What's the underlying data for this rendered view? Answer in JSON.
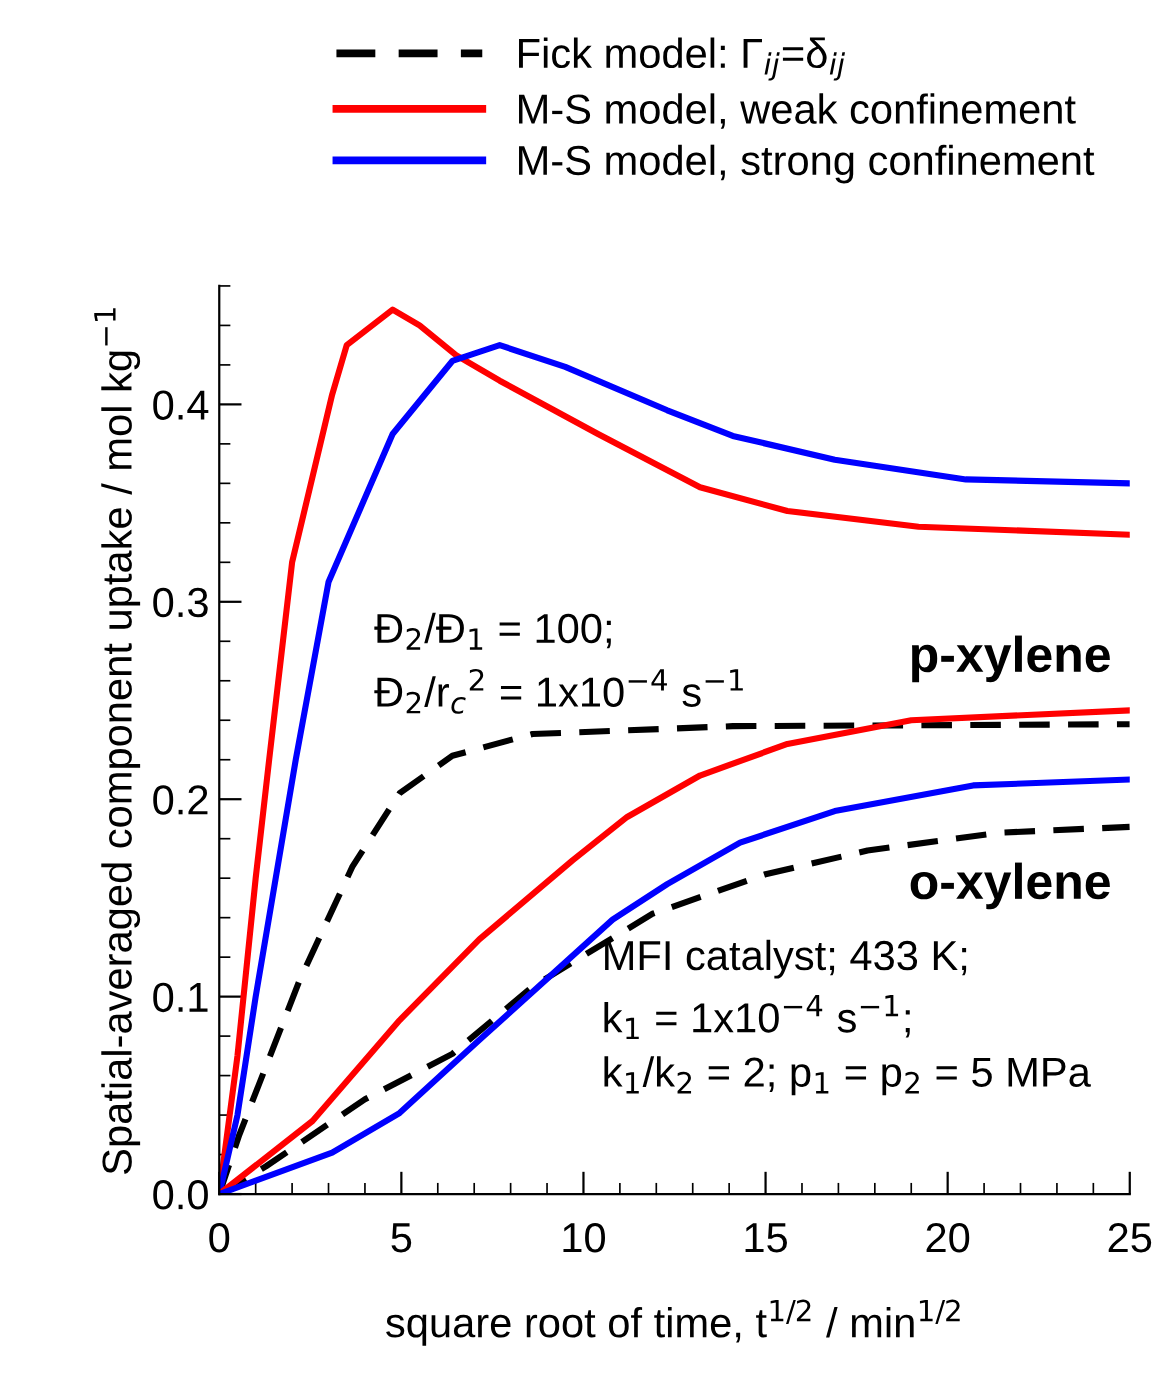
{
  "chart_data": {
    "type": "line",
    "xlabel": "square root of time, t$^{1/2}$ / min$^{1/2}$",
    "ylabel": "Spatial-averaged component uptake / mol kg$^{−1}$",
    "xlim": [
      0,
      25
    ],
    "xticks": [
      0,
      5,
      10,
      15,
      20,
      25
    ],
    "ylim": [
      0,
      0.46
    ],
    "yticks": [
      {
        "value": 0,
        "label": "0.0"
      },
      {
        "value": 0.1,
        "label": "0.1"
      },
      {
        "value": 0.2,
        "label": "0.2"
      },
      {
        "value": 0.3,
        "label": "0.3"
      },
      {
        "value": 0.4,
        "label": "0.4"
      }
    ],
    "grid": false,
    "legend": "top",
    "marker": "none",
    "series": [
      {
        "name": "Fick model: Γ$_{ij}$=δ$_{ij}$",
        "color": "#000000",
        "line_style": "dashed",
        "x": [
          0,
          0.55,
          2.2,
          3.66,
          4.95,
          6.4,
          8.6,
          14.1,
          25
        ],
        "values": [
          0,
          0.03,
          0.108,
          0.166,
          0.203,
          0.222,
          0.233,
          0.237,
          0.238
        ]
      },
      {
        "name": "M-S model, weak confinement",
        "color": "#ff0000",
        "line_style": "solid",
        "x": [
          0,
          0.5,
          1,
          1.37,
          2,
          3.1,
          3.5,
          4.76,
          5.5,
          6.5,
          7.7,
          10.4,
          13.2,
          15.6,
          19.2,
          25
        ],
        "values": [
          0,
          0.07,
          0.16,
          0.22,
          0.32,
          0.405,
          0.43,
          0.448,
          0.44,
          0.425,
          0.412,
          0.385,
          0.358,
          0.346,
          0.338,
          0.334
        ]
      },
      {
        "name": "M-S model, strong confinement",
        "color": "#0000ff",
        "line_style": "solid",
        "x": [
          0,
          0.5,
          1,
          2.1,
          3,
          4.76,
          6.4,
          7.7,
          9.5,
          12.3,
          14.1,
          16.9,
          20.5,
          25
        ],
        "values": [
          0,
          0.04,
          0.1,
          0.22,
          0.31,
          0.385,
          0.422,
          0.43,
          0.419,
          0.397,
          0.384,
          0.372,
          0.362,
          0.36
        ]
      },
      {
        "color": "#000000",
        "line_style": "dashed",
        "x": [
          0,
          1.28,
          4.0,
          6.4,
          8.6,
          11.9,
          15.0,
          17.8,
          21.4,
          25
        ],
        "values": [
          0,
          0.014,
          0.048,
          0.071,
          0.105,
          0.142,
          0.162,
          0.174,
          0.183,
          0.186
        ]
      },
      {
        "color": "#ff0000",
        "line_style": "solid",
        "x": [
          0,
          2.56,
          4.95,
          7.14,
          9.7,
          11.2,
          13.2,
          15.6,
          19.0,
          25
        ],
        "values": [
          0,
          0.037,
          0.088,
          0.129,
          0.169,
          0.191,
          0.212,
          0.228,
          0.24,
          0.245
        ]
      },
      {
        "color": "#0000ff",
        "line_style": "solid",
        "x": [
          0,
          3.1,
          4.95,
          7.14,
          10.8,
          12.3,
          14.3,
          16.9,
          20.7,
          25
        ],
        "values": [
          0,
          0.021,
          0.041,
          0.078,
          0.139,
          0.157,
          0.178,
          0.194,
          0.207,
          0.21
        ]
      }
    ],
    "annotations": [
      "Đ$_{2}$/Đ$_{1}$ = 100;\nĐ$_{2}$/r$_{c}$$^{2}$ = 1x10$^{−4}$ s$^{−1}$",
      "p-xylene",
      "o-xylene",
      "MFI catalyst; 433 K;\nk$_{1}$ = 1x10$^{−4}$ s$^{−1}$;\nk$_{1}$/k$_{2}$ = 2; p$_{1}$ = p$_{2}$ = 5 MPa"
    ]
  }
}
